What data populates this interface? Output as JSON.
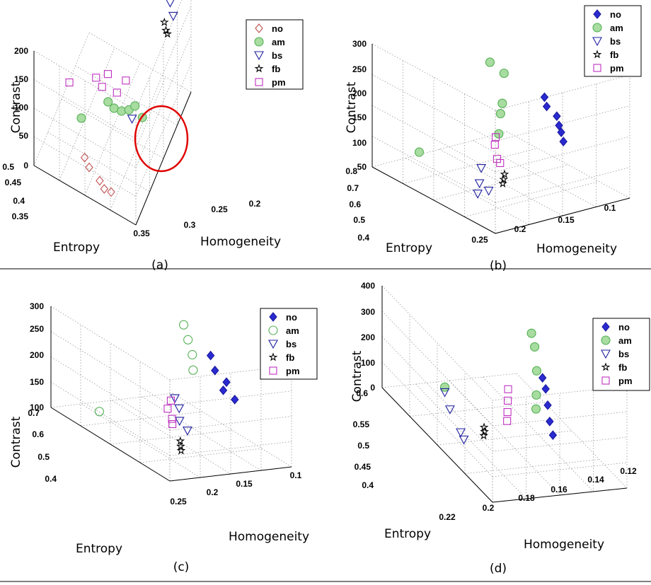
{
  "captions": [
    "(a)",
    "(b)",
    "(c)",
    "(d)"
  ],
  "legend": [
    "no",
    "am",
    "bs",
    "fb",
    "pm"
  ],
  "styles": {
    "no": {
      "marker": "diamond",
      "stroke": "#c05050",
      "fill": "none"
    },
    "am": {
      "marker": "circle",
      "stroke": "#55b055",
      "fill": "#a8dca0"
    },
    "bs": {
      "marker": "triangle-down",
      "stroke": "#2020a0",
      "fill": "none"
    },
    "fb": {
      "marker": "star",
      "stroke": "#000000",
      "fill": "none"
    },
    "pm": {
      "marker": "square",
      "stroke": "#c030c0",
      "fill": "none"
    },
    "no_filled": {
      "marker": "diamond",
      "stroke": "#1a1aa0",
      "fill": "#2a2ad0"
    },
    "am_open": {
      "marker": "circle",
      "stroke": "#55b055",
      "fill": "none"
    }
  },
  "chart_data": [
    {
      "type": "scatter3d",
      "caption": "(a)",
      "xlabel": "Homogeneity",
      "ylabel": "Entropy",
      "zlabel": "Contrast",
      "xticks": [
        "0.35",
        "0.3",
        "0.25",
        "0.2"
      ],
      "yticks": [
        "0.5",
        "0.45",
        "0.4",
        "0.35"
      ],
      "zticks": [
        "0",
        "50",
        "100",
        "150",
        "200"
      ],
      "annotation": "red circle around am and pm cluster",
      "series": [
        {
          "name": "no",
          "points": [
            [
              0.33,
              0.43,
              20
            ],
            [
              0.335,
              0.42,
              15
            ],
            [
              0.34,
              0.4,
              10
            ],
            [
              0.345,
              0.39,
              8
            ],
            [
              0.342,
              0.38,
              5
            ]
          ]
        },
        {
          "name": "am",
          "points": [
            [
              0.3,
              0.45,
              40
            ],
            [
              0.27,
              0.42,
              50
            ],
            [
              0.27,
              0.41,
              45
            ],
            [
              0.265,
              0.4,
              40
            ],
            [
              0.26,
              0.39,
              42
            ],
            [
              0.26,
              0.38,
              55
            ],
            [
              0.255,
              0.37,
              35
            ]
          ]
        },
        {
          "name": "bs",
          "points": [
            [
              0.17,
              0.38,
              200
            ],
            [
              0.175,
              0.37,
              195
            ],
            [
              0.17,
              0.36,
              190
            ],
            [
              0.18,
              0.36,
              150
            ],
            [
              0.19,
              0.35,
              145
            ],
            [
              0.27,
              0.38,
              45
            ]
          ]
        },
        {
          "name": "fb",
          "points": [
            [
              0.2,
              0.36,
              140
            ],
            [
              0.205,
              0.355,
              135
            ],
            [
              0.21,
              0.35,
              138
            ]
          ]
        },
        {
          "name": "pm",
          "points": [
            [
              0.3,
              0.47,
              90
            ],
            [
              0.27,
              0.44,
              80
            ],
            [
              0.27,
              0.43,
              70
            ],
            [
              0.25,
              0.43,
              68
            ],
            [
              0.26,
              0.41,
              60
            ],
            [
              0.25,
              0.4,
              75
            ]
          ]
        }
      ]
    },
    {
      "type": "scatter3d",
      "caption": "(b)",
      "xlabel": "Homogeneity",
      "ylabel": "Entropy",
      "zlabel": "Contrast",
      "xticks": [
        "0.25",
        "0.2",
        "0.15",
        "0.1"
      ],
      "yticks": [
        "0.8",
        "0.7",
        "0.6",
        "0.5",
        "0.4"
      ],
      "zticks": [
        "50",
        "100",
        "150",
        "200",
        "250",
        "300"
      ],
      "series": [
        {
          "name": "no",
          "points": [
            [
              0.12,
              0.6,
              200
            ],
            [
              0.125,
              0.58,
              190
            ],
            [
              0.12,
              0.56,
              175
            ],
            [
              0.125,
              0.54,
              165
            ],
            [
              0.13,
              0.52,
              160
            ],
            [
              0.135,
              0.5,
              150
            ]
          ]
        },
        {
          "name": "am",
          "points": [
            [
              0.15,
              0.7,
              250
            ],
            [
              0.14,
              0.68,
              230
            ],
            [
              0.15,
              0.66,
              180
            ],
            [
              0.16,
              0.64,
              170
            ],
            [
              0.17,
              0.62,
              140
            ],
            [
              0.22,
              0.75,
              80
            ]
          ]
        },
        {
          "name": "bs",
          "points": [
            [
              0.2,
              0.6,
              90
            ],
            [
              0.21,
              0.58,
              70
            ],
            [
              0.22,
              0.56,
              60
            ],
            [
              0.21,
              0.55,
              65
            ]
          ]
        },
        {
          "name": "fb",
          "points": [
            [
              0.19,
              0.55,
              90
            ],
            [
              0.195,
              0.54,
              85
            ],
            [
              0.2,
              0.53,
              82
            ]
          ]
        },
        {
          "name": "pm",
          "points": [
            [
              0.17,
              0.63,
              130
            ],
            [
              0.175,
              0.62,
              120
            ],
            [
              0.18,
              0.6,
              100
            ],
            [
              0.18,
              0.59,
              95
            ]
          ]
        }
      ]
    },
    {
      "type": "scatter3d",
      "caption": "(c)",
      "xlabel": "Homogeneity",
      "ylabel": "Entropy",
      "zlabel": "Contrast",
      "xticks": [
        "0.25",
        "0.2",
        "0.15",
        "0.1"
      ],
      "yticks": [
        "0.7",
        "0.6",
        "0.5",
        "0.4"
      ],
      "zticks": [
        "100",
        "150",
        "200",
        "250",
        "300"
      ],
      "series": [
        {
          "name": "no",
          "points": [
            [
              0.12,
              0.55,
              260
            ],
            [
              0.125,
              0.53,
              240
            ],
            [
              0.12,
              0.51,
              225
            ],
            [
              0.13,
              0.5,
              215
            ],
            [
              0.125,
              0.48,
              205
            ]
          ]
        },
        {
          "name": "am",
          "points": [
            [
              0.13,
              0.6,
              300
            ],
            [
              0.135,
              0.58,
              280
            ],
            [
              0.14,
              0.56,
              260
            ],
            [
              0.15,
              0.54,
              240
            ],
            [
              0.22,
              0.65,
              110
            ]
          ]
        },
        {
          "name": "bs",
          "points": [
            [
              0.17,
              0.55,
              180
            ],
            [
              0.175,
              0.53,
              170
            ],
            [
              0.18,
              0.52,
              150
            ],
            [
              0.18,
              0.5,
              140
            ]
          ]
        },
        {
          "name": "fb",
          "points": [
            [
              0.19,
              0.5,
              120
            ],
            [
              0.195,
              0.49,
              115
            ],
            [
              0.2,
              0.48,
              112
            ]
          ]
        },
        {
          "name": "pm",
          "points": [
            [
              0.17,
              0.56,
              170
            ],
            [
              0.18,
              0.55,
              160
            ],
            [
              0.185,
              0.53,
              150
            ],
            [
              0.19,
              0.52,
              145
            ]
          ]
        }
      ]
    },
    {
      "type": "scatter3d",
      "caption": "(d)",
      "xlabel": "Homogeneity",
      "ylabel": "Entropy",
      "zlabel": "Contrast",
      "xticks": [
        "0.22",
        "0.2",
        "0.18",
        "0.16",
        "0.14",
        "0.12"
      ],
      "yticks": [
        "0.6",
        "0.55",
        "0.5",
        "0.45",
        "0.4"
      ],
      "zticks": [
        "0",
        "100",
        "200",
        "300",
        "400"
      ],
      "series": [
        {
          "name": "no",
          "points": [
            [
              0.14,
              0.5,
              220
            ],
            [
              0.142,
              0.49,
              200
            ],
            [
              0.145,
              0.48,
              160
            ],
            [
              0.148,
              0.47,
              120
            ],
            [
              0.15,
              0.46,
              90
            ]
          ]
        },
        {
          "name": "am",
          "points": [
            [
              0.14,
              0.52,
              350
            ],
            [
              0.142,
              0.51,
              320
            ],
            [
              0.145,
              0.5,
              250
            ],
            [
              0.15,
              0.49,
              180
            ],
            [
              0.155,
              0.48,
              150
            ],
            [
              0.2,
              0.55,
              100
            ]
          ]
        },
        {
          "name": "bs",
          "points": [
            [
              0.2,
              0.55,
              80
            ],
            [
              0.205,
              0.53,
              60
            ],
            [
              0.21,
              0.5,
              40
            ],
            [
              0.212,
              0.49,
              35
            ]
          ]
        },
        {
          "name": "fb",
          "points": [
            [
              0.19,
              0.5,
              50
            ],
            [
              0.192,
              0.495,
              45
            ],
            [
              0.195,
              0.49,
              42
            ]
          ]
        },
        {
          "name": "pm",
          "points": [
            [
              0.16,
              0.52,
              140
            ],
            [
              0.165,
              0.51,
              120
            ],
            [
              0.17,
              0.5,
              100
            ],
            [
              0.175,
              0.49,
              90
            ]
          ]
        }
      ]
    }
  ]
}
